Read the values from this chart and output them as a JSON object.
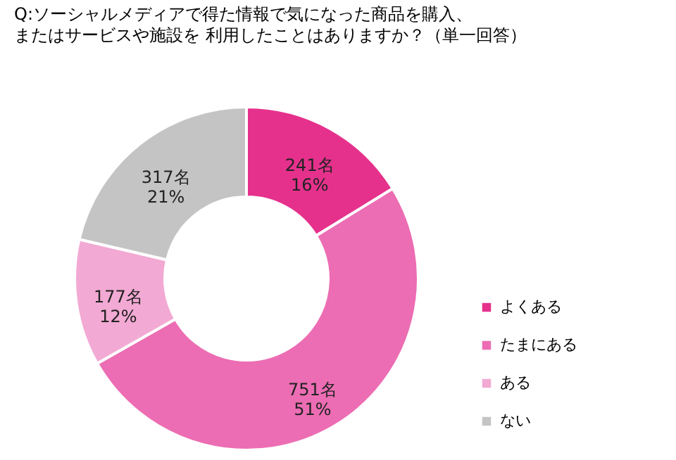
{
  "chart_data": {
    "type": "donut",
    "title": "Q:ソーシャルメディアで得た情報で気になった商品を購入、",
    "subtitle": "またはサービスや施設を 利用したことはありますか？（単一回答）",
    "categories": [
      "よくある",
      "たまにある",
      "ある",
      "ない"
    ],
    "values": [
      241,
      751,
      177,
      317
    ],
    "colors": [
      "#e5318c",
      "#ec6db3",
      "#f2a9d3",
      "#c4c4c4"
    ],
    "value_labels": [
      "241名\n16%",
      "751名\n51%",
      "177名\n12%",
      "317名\n21%"
    ],
    "legend": "bottom right"
  }
}
